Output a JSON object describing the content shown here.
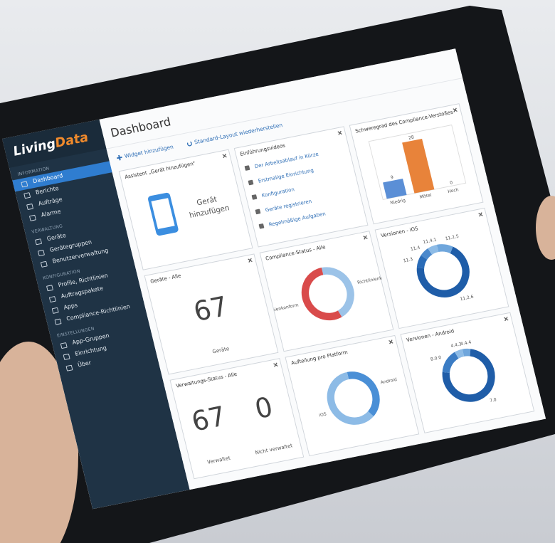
{
  "sidebar": {
    "logo": {
      "first": "Living",
      "second": "Data"
    },
    "sections": [
      {
        "title": "INFORMATION",
        "items": [
          "Dashboard",
          "Berichte",
          "Aufträge",
          "Alarme"
        ]
      },
      {
        "title": "VERWALTUNG",
        "items": [
          "Geräte",
          "Gerätegruppen",
          "Benutzerverwaltung"
        ]
      },
      {
        "title": "KONFIGURATION",
        "items": [
          "Profile, Richtlinien",
          "Auftragspakete",
          "Apps",
          "Compliance-Richtlinien"
        ]
      },
      {
        "title": "EINSTELLUNGEN",
        "items": [
          "App-Gruppen",
          "Einrichtung",
          "Über"
        ]
      }
    ]
  },
  "header": {
    "title": "Dashboard",
    "actions": [
      "Widget hinzufügen",
      "Standard-Layout wiederherstellen"
    ]
  },
  "widgets": {
    "assistant": {
      "title": "Assistent „Gerät hinzufügen“",
      "label": "Gerät hinzufügen"
    },
    "videos": {
      "title": "Einführungsvideos",
      "items": [
        "Der Arbeitsablauf in Kürze",
        "Erstmalige Einrichtung",
        "Konfiguration",
        "Geräte registrieren",
        "Regelmäßige Aufgaben"
      ]
    },
    "devices": {
      "title": "Geräte - Alle",
      "value": 67,
      "label": "Geräte"
    },
    "status": {
      "title": "Verwaltungs-Status - Alle",
      "items": [
        {
          "value": 67,
          "label": "Verwaltet"
        },
        {
          "value": 0,
          "label": "Nicht verwaltet"
        }
      ]
    }
  },
  "chart_data": [
    {
      "type": "bar",
      "title": "Schweregrad des Compliance-Verstoßes",
      "categories": [
        "Niedrig",
        "Mittel",
        "Hoch"
      ],
      "values": [
        9,
        28,
        0
      ],
      "colors": [
        "#5b8fd6",
        "#e8833a",
        "#5b8fd6"
      ],
      "ylim": [
        0,
        30
      ]
    },
    {
      "type": "donut",
      "title": "Compliance-Status - Alle",
      "categories": [
        "Richtlinienkonform",
        "Nicht richtlinienkonform"
      ],
      "values": [
        45,
        55
      ],
      "colors": [
        "#9cc3e8",
        "#d94b4b"
      ]
    },
    {
      "type": "donut",
      "title": "Versionen - iOS",
      "categories": [
        "11.2.5",
        "11.2.6",
        "11.3",
        "11.4",
        "11.4.1"
      ],
      "values": [
        10,
        70,
        8,
        6,
        6
      ],
      "colors": [
        "#6fa6dc",
        "#1f5da8",
        "#2a6cb8",
        "#4a88cc",
        "#8dbbe6"
      ]
    },
    {
      "type": "donut",
      "title": "Versionen - Android",
      "categories": [
        "4.4.4",
        "7.0",
        "8.0.0",
        "4.4.3"
      ],
      "values": [
        5,
        75,
        15,
        5
      ],
      "colors": [
        "#6fa6dc",
        "#1f5da8",
        "#3b7cc4",
        "#8dbbe6"
      ]
    },
    {
      "type": "donut",
      "title": "Aufteilung pro Platform",
      "categories": [
        "Android",
        "iOS"
      ],
      "values": [
        40,
        60
      ],
      "colors": [
        "#4a8fd6",
        "#8dbbe6"
      ]
    }
  ]
}
